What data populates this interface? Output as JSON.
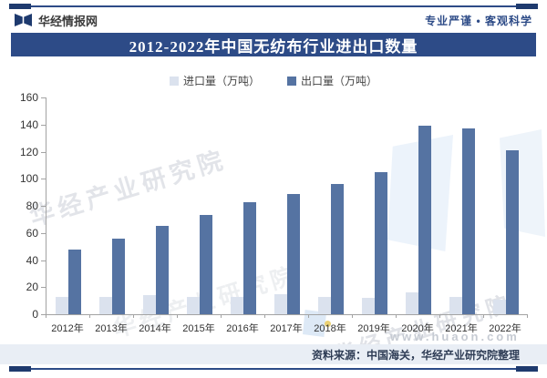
{
  "page": {
    "brand": "华经情报网",
    "slogan": "专业严谨 • 客观科学",
    "source_note": "资料来源：中国海关，华经产业研究院整理",
    "watermark_text": "华经产业研究院",
    "watermark_url": "www.huaon.com"
  },
  "colors": {
    "banner_navy": "#2d4b87",
    "rule_navy": "#1e3a6e",
    "import_bar": "#dbe2ee",
    "export_bar": "#5573a2",
    "footer_bg": "#e9eef5",
    "axis_gray": "#a3a3a3"
  },
  "chart_data": {
    "type": "bar",
    "title": "2012-2022年中国无纺布行业进出口数量",
    "categories": [
      "2012年",
      "2013年",
      "2014年",
      "2015年",
      "2016年",
      "2017年",
      "2018年",
      "2019年",
      "2020年",
      "2021年",
      "2022年"
    ],
    "series": [
      {
        "name": "进口量（万吨）",
        "color": "#dbe2ee",
        "values": [
          13,
          13,
          14,
          13,
          13,
          15,
          13,
          12,
          16,
          13,
          11
        ]
      },
      {
        "name": "出口量（万吨）",
        "color": "#5573a2",
        "values": [
          48,
          56,
          65,
          73,
          83,
          89,
          96,
          105,
          139,
          137,
          121
        ]
      }
    ],
    "xlabel": "",
    "ylabel": "万吨",
    "ylim": [
      0,
      160
    ],
    "yticks": [
      0,
      20,
      40,
      60,
      80,
      100,
      120,
      140,
      160
    ],
    "grid": false,
    "legend_position": "top"
  }
}
